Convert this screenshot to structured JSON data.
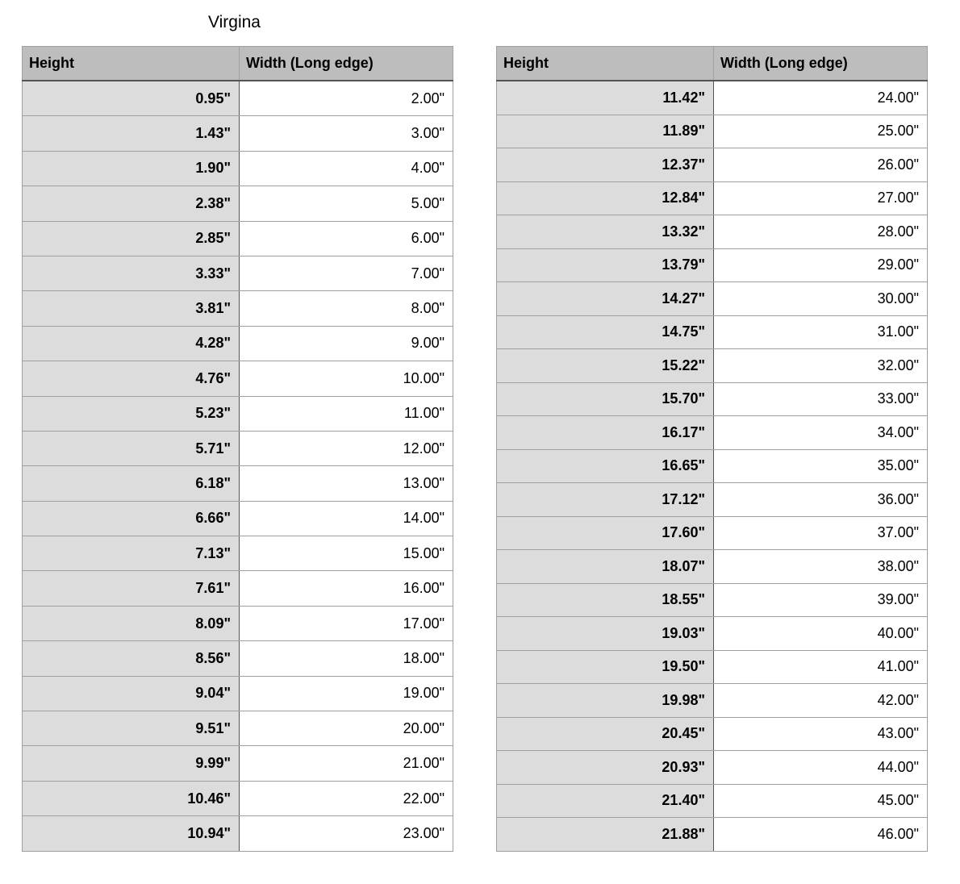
{
  "title": "Virgina",
  "tables": [
    {
      "headers": [
        "Height",
        "Width (Long edge)"
      ],
      "rows": [
        [
          "0.95\"",
          "2.00\""
        ],
        [
          "1.43\"",
          "3.00\""
        ],
        [
          "1.90\"",
          "4.00\""
        ],
        [
          "2.38\"",
          "5.00\""
        ],
        [
          "2.85\"",
          "6.00\""
        ],
        [
          "3.33\"",
          "7.00\""
        ],
        [
          "3.81\"",
          "8.00\""
        ],
        [
          "4.28\"",
          "9.00\""
        ],
        [
          "4.76\"",
          "10.00\""
        ],
        [
          "5.23\"",
          "11.00\""
        ],
        [
          "5.71\"",
          "12.00\""
        ],
        [
          "6.18\"",
          "13.00\""
        ],
        [
          "6.66\"",
          "14.00\""
        ],
        [
          "7.13\"",
          "15.00\""
        ],
        [
          "7.61\"",
          "16.00\""
        ],
        [
          "8.09\"",
          "17.00\""
        ],
        [
          "8.56\"",
          "18.00\""
        ],
        [
          "9.04\"",
          "19.00\""
        ],
        [
          "9.51\"",
          "20.00\""
        ],
        [
          "9.99\"",
          "21.00\""
        ],
        [
          "10.46\"",
          "22.00\""
        ],
        [
          "10.94\"",
          "23.00\""
        ]
      ]
    },
    {
      "headers": [
        "Height",
        "Width (Long edge)"
      ],
      "rows": [
        [
          "11.42\"",
          "24.00\""
        ],
        [
          "11.89\"",
          "25.00\""
        ],
        [
          "12.37\"",
          "26.00\""
        ],
        [
          "12.84\"",
          "27.00\""
        ],
        [
          "13.32\"",
          "28.00\""
        ],
        [
          "13.79\"",
          "29.00\""
        ],
        [
          "14.27\"",
          "30.00\""
        ],
        [
          "14.75\"",
          "31.00\""
        ],
        [
          "15.22\"",
          "32.00\""
        ],
        [
          "15.70\"",
          "33.00\""
        ],
        [
          "16.17\"",
          "34.00\""
        ],
        [
          "16.65\"",
          "35.00\""
        ],
        [
          "17.12\"",
          "36.00\""
        ],
        [
          "17.60\"",
          "37.00\""
        ],
        [
          "18.07\"",
          "38.00\""
        ],
        [
          "18.55\"",
          "39.00\""
        ],
        [
          "19.03\"",
          "40.00\""
        ],
        [
          "19.50\"",
          "41.00\""
        ],
        [
          "19.98\"",
          "42.00\""
        ],
        [
          "20.45\"",
          "43.00\""
        ],
        [
          "20.93\"",
          "44.00\""
        ],
        [
          "21.40\"",
          "45.00\""
        ],
        [
          "21.88\"",
          "46.00\""
        ]
      ]
    }
  ]
}
